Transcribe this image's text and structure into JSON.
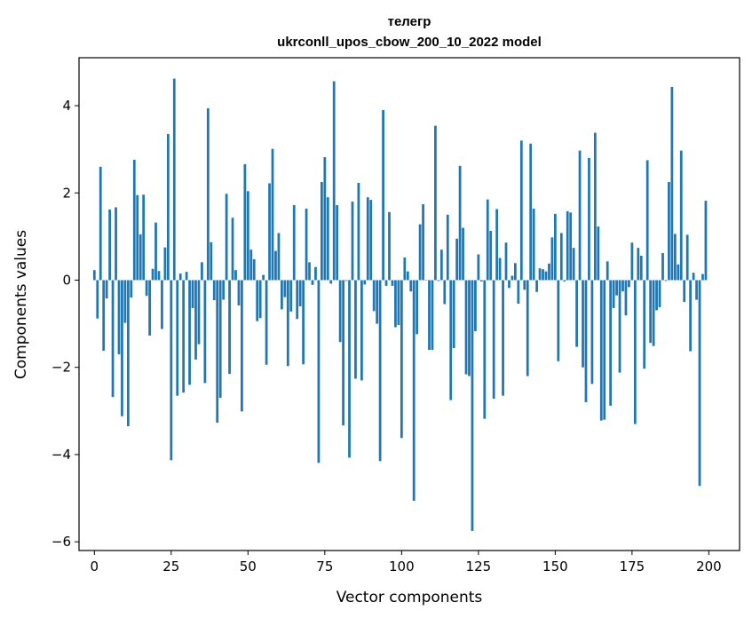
{
  "chart_data": {
    "type": "bar",
    "title": "телегр",
    "subtitle": "ukrconll_upos_cbow_200_10_2022 model",
    "xlabel": "Vector components",
    "ylabel": "Components values",
    "xlim": [
      -5,
      210
    ],
    "ylim": [
      -6.2,
      5.1
    ],
    "xticks": [
      0,
      25,
      50,
      75,
      100,
      125,
      150,
      175,
      200
    ],
    "yticks": [
      -6,
      -4,
      -2,
      0,
      2,
      4
    ],
    "ytick_labels": [
      "−6",
      "−4",
      "−2",
      "0",
      "2",
      "4"
    ],
    "grid": false,
    "bar_color": "#1f77b4",
    "values": [
      0.23,
      -0.88,
      2.6,
      -1.62,
      -0.42,
      1.62,
      -2.68,
      1.67,
      -1.7,
      -3.12,
      -0.98,
      -3.35,
      -0.4,
      2.76,
      1.95,
      1.05,
      1.96,
      -0.36,
      -1.27,
      0.26,
      1.32,
      0.21,
      -1.12,
      0.75,
      3.35,
      -4.13,
      4.62,
      -2.65,
      0.15,
      -2.58,
      0.19,
      -2.4,
      -0.64,
      -1.82,
      -1.47,
      0.41,
      -2.36,
      3.94,
      0.87,
      -0.46,
      -3.27,
      -2.7,
      -0.45,
      1.98,
      -2.15,
      1.43,
      0.23,
      -0.58,
      -3.01,
      2.66,
      2.04,
      0.7,
      0.48,
      -0.94,
      -0.87,
      0.12,
      -1.94,
      2.22,
      3.01,
      0.67,
      1.08,
      -0.67,
      -0.39,
      -1.97,
      -0.72,
      1.72,
      -0.89,
      -0.6,
      -1.93,
      1.64,
      0.41,
      -0.11,
      0.3,
      -4.19,
      2.25,
      2.82,
      1.9,
      -0.08,
      4.56,
      1.72,
      -1.42,
      -3.33,
      -0.02,
      -4.07,
      1.8,
      -2.26,
      2.23,
      -2.3,
      -0.1,
      1.9,
      1.84,
      -0.71,
      -1.0,
      -4.15,
      3.9,
      -0.13,
      1.56,
      -0.13,
      -1.08,
      -1.03,
      -3.62,
      0.52,
      0.2,
      -0.26,
      -5.06,
      -1.24,
      1.28,
      1.74,
      -0.01,
      -1.6,
      -1.6,
      3.54,
      -0.02,
      0.7,
      -0.55,
      1.5,
      -2.75,
      -1.56,
      0.95,
      2.62,
      1.2,
      -2.16,
      -2.2,
      -5.75,
      -1.17,
      0.59,
      -0.03,
      -3.18,
      1.85,
      1.13,
      -2.72,
      1.63,
      0.51,
      -2.65,
      0.86,
      -0.18,
      0.1,
      0.39,
      -0.54,
      3.2,
      -0.22,
      -2.2,
      3.13,
      1.64,
      -0.27,
      0.27,
      0.25,
      0.2,
      0.38,
      0.98,
      1.52,
      -1.86,
      1.08,
      -0.03,
      1.58,
      1.55,
      0.74,
      -1.53,
      2.97,
      -2.0,
      -2.8,
      2.8,
      -2.38,
      3.38,
      1.23,
      -3.22,
      -3.2,
      0.43,
      -2.88,
      -0.64,
      -0.35,
      -2.12,
      -0.26,
      -0.81,
      -0.16,
      0.86,
      -3.3,
      0.74,
      0.56,
      -2.03,
      2.75,
      -1.44,
      -1.51,
      -0.69,
      -0.62,
      0.62,
      -0.02,
      2.25,
      4.43,
      1.06,
      0.36,
      2.97,
      -0.5,
      1.04,
      -1.63,
      0.17,
      -0.45,
      -4.72,
      0.14,
      1.82
    ]
  }
}
